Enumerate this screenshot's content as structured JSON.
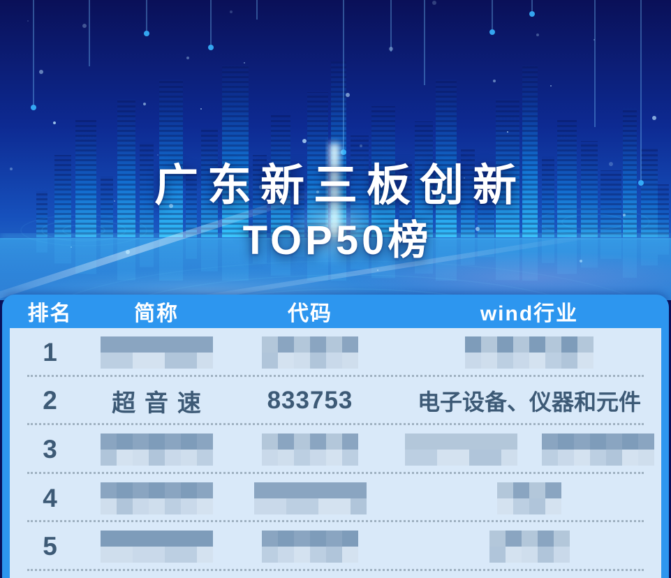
{
  "title": {
    "line1": "广东新三板创新",
    "line2": "TOP50榜"
  },
  "chart_data": {
    "type": "table",
    "title": "广东新三板创新TOP50榜",
    "columns": [
      {
        "key": "rank",
        "label": "排名"
      },
      {
        "key": "name",
        "label": "简称"
      },
      {
        "key": "code",
        "label": "代码"
      },
      {
        "key": "industry",
        "label": "wind行业"
      }
    ],
    "rows": [
      {
        "rank": "1",
        "name": {
          "redacted": [
            161
          ]
        },
        "code": {
          "redacted": [
            138
          ]
        },
        "industry": {
          "redacted": [
            177
          ]
        }
      },
      {
        "rank": "2",
        "name": {
          "text": "超音速"
        },
        "code": {
          "text": "833753"
        },
        "industry": {
          "text": "电子设备、仪器和元件"
        }
      },
      {
        "rank": "3",
        "name": {
          "redacted": [
            150
          ]
        },
        "code": {
          "redacted": [
            138
          ]
        },
        "industry": {
          "redacted": [
            150,
            170
          ]
        }
      },
      {
        "rank": "4",
        "name": {
          "redacted": [
            158
          ]
        },
        "code": {
          "redacted": [
            158
          ]
        },
        "industry": {
          "redacted": [
            85
          ]
        }
      },
      {
        "rank": "5",
        "name": {
          "redacted": [
            155
          ]
        },
        "code": {
          "redacted": [
            145
          ]
        },
        "industry": {
          "redacted": [
            125
          ]
        }
      }
    ],
    "note": "Values of rows 1, 3, 4 and 5 are pixelated (blurred) in the source image; only row 2 is readable."
  },
  "colors": {
    "header_blue": "#2d96ef",
    "panel_light": "#d9e9f9",
    "ink": "#3d5a76",
    "bg_navy": "#0a1058",
    "city_glow": "#35c8ff"
  }
}
